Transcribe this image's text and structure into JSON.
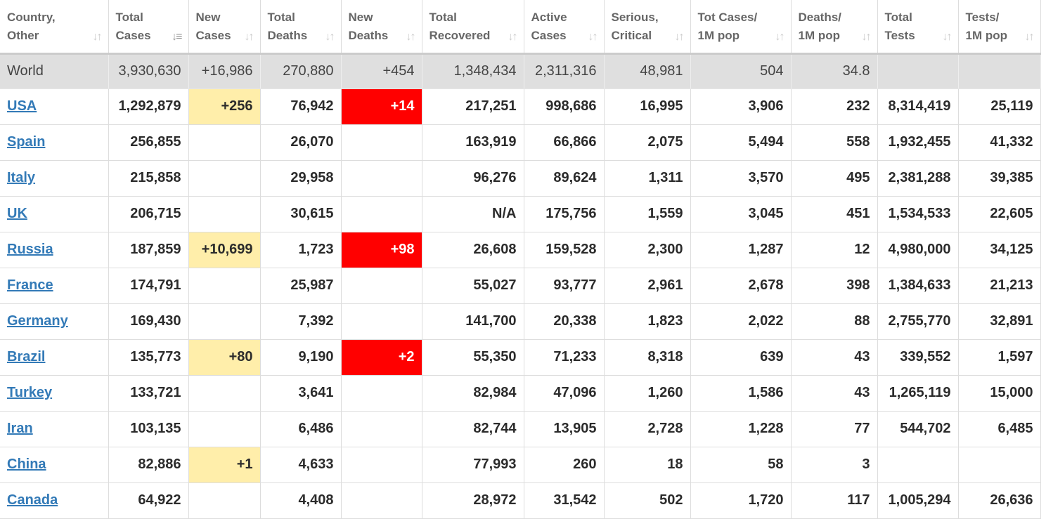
{
  "columns": [
    {
      "key": "country",
      "line1": "Country,",
      "line2": "Other"
    },
    {
      "key": "total_cases",
      "line1": "Total",
      "line2": "Cases",
      "sorted": true
    },
    {
      "key": "new_cases",
      "line1": "New",
      "line2": "Cases"
    },
    {
      "key": "total_deaths",
      "line1": "Total",
      "line2": "Deaths"
    },
    {
      "key": "new_deaths",
      "line1": "New",
      "line2": "Deaths"
    },
    {
      "key": "total_recovered",
      "line1": "Total",
      "line2": "Recovered"
    },
    {
      "key": "active_cases",
      "line1": "Active",
      "line2": "Cases"
    },
    {
      "key": "serious_critical",
      "line1": "Serious,",
      "line2": "Critical"
    },
    {
      "key": "cases_per_1m",
      "line1": "Tot Cases/",
      "line2": "1M pop"
    },
    {
      "key": "deaths_per_1m",
      "line1": "Deaths/",
      "line2": "1M pop"
    },
    {
      "key": "total_tests",
      "line1": "Total",
      "line2": "Tests"
    },
    {
      "key": "tests_per_1m",
      "line1": "Tests/",
      "line2": "1M pop"
    }
  ],
  "world": [
    "World",
    "3,930,630",
    "+16,986",
    "270,880",
    "+454",
    "1,348,434",
    "2,311,316",
    "48,981",
    "504",
    "34.8",
    "",
    ""
  ],
  "rows": [
    {
      "cells": [
        "USA",
        "1,292,879",
        "+256",
        "76,942",
        "+14",
        "217,251",
        "998,686",
        "16,995",
        "3,906",
        "232",
        "8,314,419",
        "25,119"
      ]
    },
    {
      "cells": [
        "Spain",
        "256,855",
        "",
        "26,070",
        "",
        "163,919",
        "66,866",
        "2,075",
        "5,494",
        "558",
        "1,932,455",
        "41,332"
      ]
    },
    {
      "cells": [
        "Italy",
        "215,858",
        "",
        "29,958",
        "",
        "96,276",
        "89,624",
        "1,311",
        "3,570",
        "495",
        "2,381,288",
        "39,385"
      ]
    },
    {
      "cells": [
        "UK",
        "206,715",
        "",
        "30,615",
        "",
        "N/A",
        "175,756",
        "1,559",
        "3,045",
        "451",
        "1,534,533",
        "22,605"
      ]
    },
    {
      "cells": [
        "Russia",
        "187,859",
        "+10,699",
        "1,723",
        "+98",
        "26,608",
        "159,528",
        "2,300",
        "1,287",
        "12",
        "4,980,000",
        "34,125"
      ]
    },
    {
      "cells": [
        "France",
        "174,791",
        "",
        "25,987",
        "",
        "55,027",
        "93,777",
        "2,961",
        "2,678",
        "398",
        "1,384,633",
        "21,213"
      ]
    },
    {
      "cells": [
        "Germany",
        "169,430",
        "",
        "7,392",
        "",
        "141,700",
        "20,338",
        "1,823",
        "2,022",
        "88",
        "2,755,770",
        "32,891"
      ]
    },
    {
      "cells": [
        "Brazil",
        "135,773",
        "+80",
        "9,190",
        "+2",
        "55,350",
        "71,233",
        "8,318",
        "639",
        "43",
        "339,552",
        "1,597"
      ]
    },
    {
      "cells": [
        "Turkey",
        "133,721",
        "",
        "3,641",
        "",
        "82,984",
        "47,096",
        "1,260",
        "1,586",
        "43",
        "1,265,119",
        "15,000"
      ]
    },
    {
      "cells": [
        "Iran",
        "103,135",
        "",
        "6,486",
        "",
        "82,744",
        "13,905",
        "2,728",
        "1,228",
        "77",
        "544,702",
        "6,485"
      ]
    },
    {
      "cells": [
        "China",
        "82,886",
        "+1",
        "4,633",
        "",
        "77,993",
        "260",
        "18",
        "58",
        "3",
        "",
        ""
      ]
    },
    {
      "cells": [
        "Canada",
        "64,922",
        "",
        "4,408",
        "",
        "28,972",
        "31,542",
        "502",
        "1,720",
        "117",
        "1,005,294",
        "26,636"
      ]
    }
  ],
  "colors": {
    "new_cases_highlight": "#ffeeaa",
    "new_deaths_highlight": "#ff0000",
    "link": "#337ab7",
    "world_row": "#dfdfdf"
  },
  "icons": {
    "sort": "sort-arrows-icon",
    "sort_active": "sort-desc-icon"
  }
}
